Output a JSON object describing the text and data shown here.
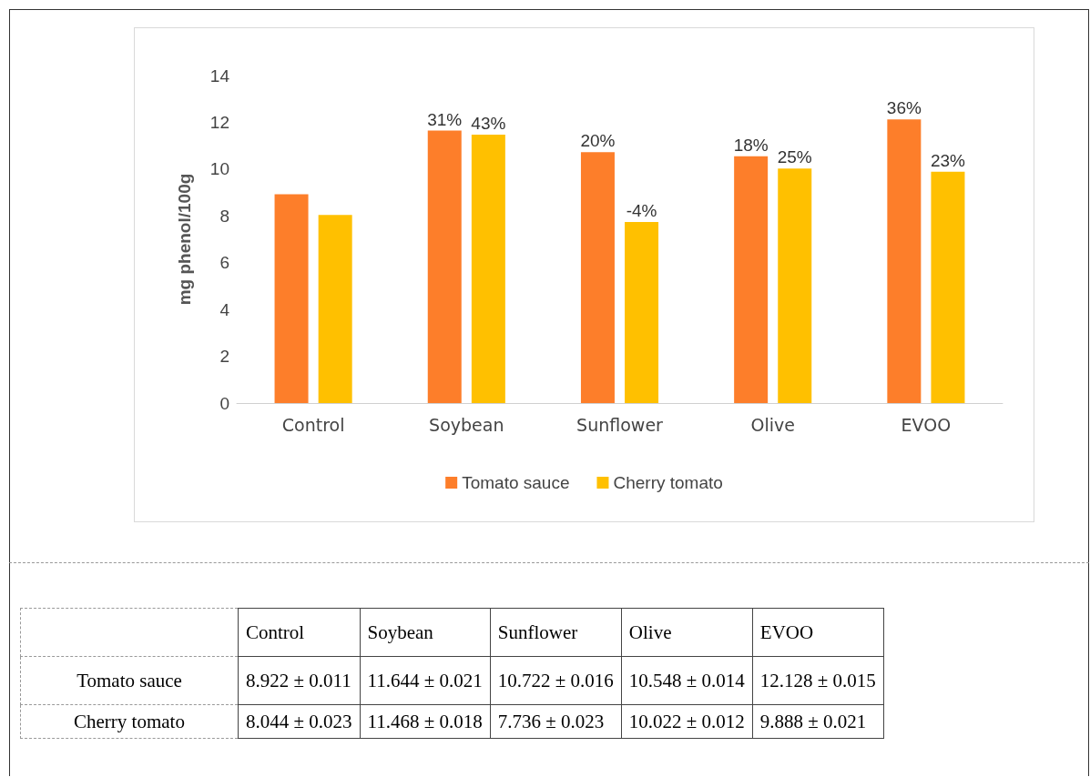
{
  "chart_data": {
    "type": "bar",
    "ylabel": "mg phenol/100g",
    "categories": [
      "Control",
      "Soybean",
      "Sunflower",
      "Olive",
      "EVOO"
    ],
    "series": [
      {
        "name": "Tomato sauce",
        "color": "#fd7e2a",
        "values": [
          8.922,
          11.644,
          10.722,
          10.548,
          12.128
        ]
      },
      {
        "name": "Cherry tomato",
        "color": "#ffc000",
        "values": [
          8.044,
          11.468,
          7.736,
          10.022,
          9.888
        ]
      }
    ],
    "annotations": [
      "31%",
      "20%",
      "18%",
      "36%",
      "43%",
      "-4%",
      "25%",
      "23%",
      "8.922 ± 0.011",
      "11.644 ± 0.021",
      "10.722 ± 0.016",
      "10.548 ± 0.014",
      "12.128 ± 0.015",
      "8.044 ± 0.023",
      "11.468 ± 0.018",
      "7.736 ± 0.023",
      "10.022 ± 0.012",
      "9.888 ± 0.021"
    ],
    "ylim": [
      0,
      14
    ],
    "yticks": [
      0,
      2,
      4,
      6,
      8,
      10,
      12,
      14
    ],
    "grid": false,
    "legend": "bottom"
  }
}
